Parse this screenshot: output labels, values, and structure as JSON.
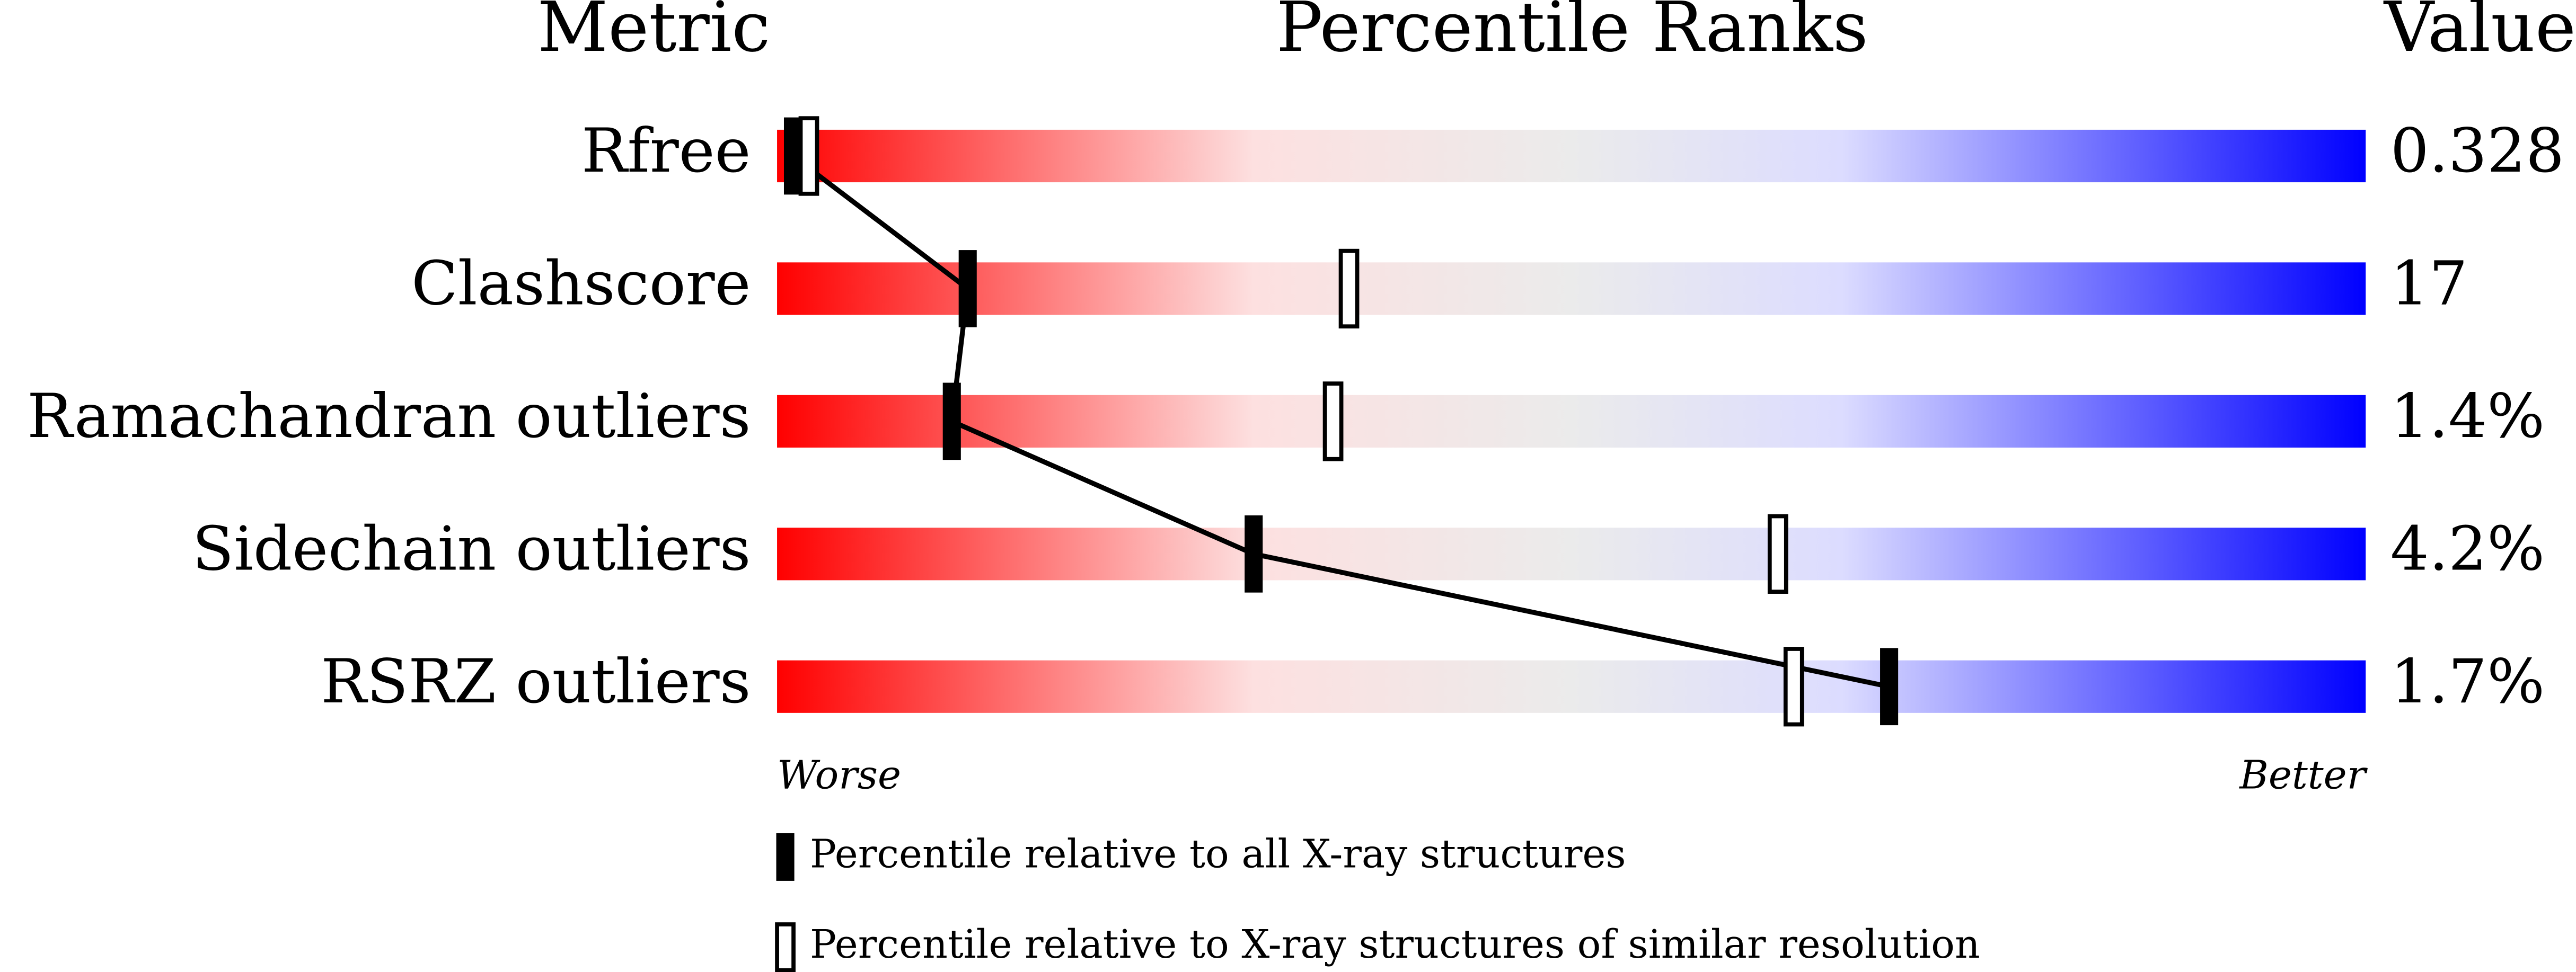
{
  "chart_data": {
    "type": "percentile",
    "headers": {
      "metric": "Metric",
      "ranks": "Percentile Ranks",
      "value": "Value"
    },
    "categories": [
      "Rfree",
      "Clashscore",
      "Ramachandran outliers",
      "Sidechain outliers",
      "RSRZ outliers"
    ],
    "metric_values": [
      "0.328",
      "17",
      "1.4%",
      "4.2%",
      "1.7%"
    ],
    "series": [
      {
        "name": "Percentile relative to all X-ray structures",
        "color": "#000000",
        "values": [
          1,
          12,
          11,
          30,
          70
        ]
      },
      {
        "name": "Percentile relative to X-ray structures of similar resolution",
        "color": "#ffffff",
        "values": [
          2,
          36,
          35,
          63,
          64
        ]
      }
    ],
    "xlim": [
      0,
      100
    ],
    "axis_labels": {
      "low": "Worse",
      "high": "Better"
    }
  }
}
